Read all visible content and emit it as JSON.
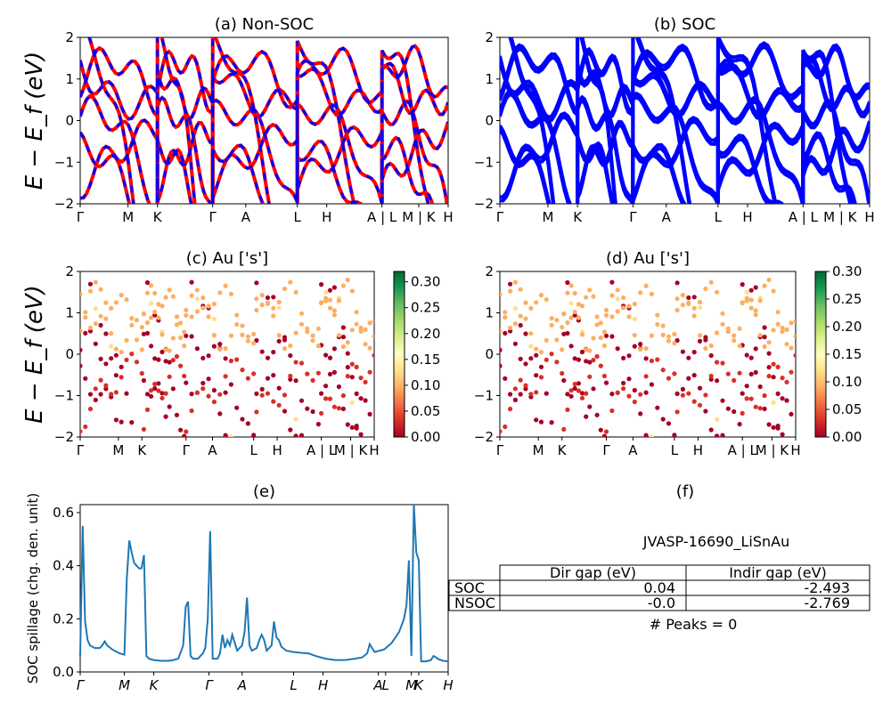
{
  "chart_data": [
    {
      "id": "a",
      "type": "line",
      "title": "(a) Non-SOC",
      "ylabel": "E − E_f (eV)",
      "ylim": [
        -2,
        2
      ],
      "yticks": [
        "−2",
        "−1",
        "0",
        "1",
        "2"
      ],
      "xticks": [
        "Γ",
        "M",
        "K",
        "Γ",
        "A",
        "L",
        "H",
        "A | L",
        "M | K",
        "H"
      ],
      "series": [
        {
          "color": "#ff0000",
          "style": "solid",
          "values": []
        },
        {
          "color": "#0000ff",
          "style": "dashed",
          "values": []
        }
      ]
    },
    {
      "id": "b",
      "type": "line",
      "title": "(b) SOC",
      "ylim": [
        -2,
        2
      ],
      "yticks": [
        "−2",
        "−1",
        "0",
        "1",
        "2"
      ],
      "xticks": [
        "Γ",
        "M",
        "K",
        "Γ",
        "A",
        "L",
        "H",
        "A | L",
        "M | K",
        "H"
      ],
      "series": [
        {
          "color": "#0000ff",
          "style": "solid",
          "values": []
        }
      ]
    },
    {
      "id": "c",
      "type": "scatter",
      "title": "(c)  Au ['s']",
      "ylabel": "E − E_f (eV)",
      "ylim": [
        -2,
        2
      ],
      "yticks": [
        "−2",
        "−1",
        "0",
        "1",
        "2"
      ],
      "xticks": [
        "Γ",
        "M",
        "K",
        "Γ",
        "A",
        "L",
        "H",
        "A | L",
        "M | K",
        "H"
      ],
      "colorbar": {
        "range": [
          0,
          0.32
        ],
        "ticks": [
          "0.00",
          "0.05",
          "0.10",
          "0.15",
          "0.20",
          "0.25",
          "0.30"
        ],
        "colormap": "RdYlGn"
      }
    },
    {
      "id": "d",
      "type": "scatter",
      "title": "(d) Au ['s']",
      "ylim": [
        -2,
        2
      ],
      "yticks": [
        "−2",
        "−1",
        "0",
        "1",
        "2"
      ],
      "xticks": [
        "Γ",
        "M",
        "K",
        "Γ",
        "A",
        "L",
        "H",
        "A | L",
        "M | K",
        "H"
      ],
      "colorbar": {
        "range": [
          0,
          0.3
        ],
        "ticks": [
          "0.00",
          "0.05",
          "0.10",
          "0.15",
          "0.20",
          "0.25",
          "0.30"
        ],
        "colormap": "RdYlGn"
      }
    },
    {
      "id": "e",
      "type": "line",
      "title": "(e)",
      "ylabel": "SOC spillage (chg. den. unit)",
      "ylim": [
        0,
        0.63
      ],
      "yticks": [
        "0.0",
        "0.2",
        "0.4",
        "0.6"
      ],
      "xticks": [
        "Γ",
        "M",
        "K",
        "Γ",
        "A",
        "L",
        "H",
        "A",
        "L",
        "M",
        "K",
        "H"
      ],
      "series": [
        {
          "color": "#1f77b4",
          "values": [
            [
              0,
              0.06
            ],
            [
              1,
              0.55
            ],
            [
              2,
              0.19
            ],
            [
              3,
              0.12
            ],
            [
              4,
              0.1
            ],
            [
              6,
              0.09
            ],
            [
              8,
              0.09
            ],
            [
              9,
              0.1
            ],
            [
              10,
              0.115
            ],
            [
              11,
              0.1
            ],
            [
              13,
              0.085
            ],
            [
              16,
              0.07
            ],
            [
              18,
              0.065
            ],
            [
              19,
              0.35
            ],
            [
              20,
              0.495
            ],
            [
              21,
              0.45
            ],
            [
              22,
              0.41
            ],
            [
              24,
              0.39
            ],
            [
              25,
              0.39
            ],
            [
              26,
              0.44
            ],
            [
              27,
              0.06
            ],
            [
              28,
              0.05
            ],
            [
              30,
              0.045
            ],
            [
              33,
              0.042
            ],
            [
              36,
              0.042
            ],
            [
              38,
              0.045
            ],
            [
              40,
              0.05
            ],
            [
              42,
              0.1
            ],
            [
              43,
              0.245
            ],
            [
              44,
              0.265
            ],
            [
              45,
              0.06
            ],
            [
              46,
              0.05
            ],
            [
              48,
              0.05
            ],
            [
              50,
              0.07
            ],
            [
              51,
              0.09
            ],
            [
              52,
              0.2
            ],
            [
              53,
              0.53
            ],
            [
              54,
              0.05
            ],
            [
              56,
              0.05
            ],
            [
              57,
              0.07
            ],
            [
              58,
              0.14
            ],
            [
              59,
              0.09
            ],
            [
              60,
              0.12
            ],
            [
              61,
              0.1
            ],
            [
              62,
              0.14
            ],
            [
              64,
              0.08
            ],
            [
              66,
              0.1
            ],
            [
              67,
              0.15
            ],
            [
              68,
              0.28
            ],
            [
              69,
              0.1
            ],
            [
              70,
              0.08
            ],
            [
              72,
              0.09
            ],
            [
              73,
              0.12
            ],
            [
              74,
              0.14
            ],
            [
              75,
              0.12
            ],
            [
              76,
              0.08
            ],
            [
              78,
              0.1
            ],
            [
              79,
              0.19
            ],
            [
              80,
              0.13
            ],
            [
              81,
              0.12
            ],
            [
              82,
              0.095
            ],
            [
              84,
              0.08
            ],
            [
              87,
              0.075
            ],
            [
              90,
              0.072
            ],
            [
              93,
              0.07
            ],
            [
              96,
              0.06
            ],
            [
              100,
              0.05
            ],
            [
              104,
              0.045
            ],
            [
              108,
              0.045
            ],
            [
              112,
              0.05
            ],
            [
              115,
              0.055
            ],
            [
              117,
              0.07
            ],
            [
              118,
              0.105
            ],
            [
              119,
              0.09
            ],
            [
              120,
              0.075
            ],
            [
              122,
              0.08
            ],
            [
              124,
              0.085
            ],
            [
              127,
              0.11
            ],
            [
              130,
              0.15
            ],
            [
              132,
              0.2
            ],
            [
              133,
              0.25
            ],
            [
              134,
              0.42
            ],
            [
              135,
              0.06
            ],
            [
              136,
              0.63
            ],
            [
              137,
              0.45
            ],
            [
              138,
              0.42
            ],
            [
              139,
              0.04
            ],
            [
              141,
              0.04
            ],
            [
              143,
              0.045
            ],
            [
              144,
              0.06
            ],
            [
              145,
              0.055
            ],
            [
              146,
              0.048
            ],
            [
              148,
              0.042
            ],
            [
              150,
              0.04
            ]
          ]
        }
      ]
    },
    {
      "id": "f",
      "type": "table",
      "title": "(f)",
      "subtitle": "JVASP-16690_LiSnAu",
      "columns": [
        "",
        "Dir gap (eV)",
        "Indir gap (eV)"
      ],
      "rows": [
        [
          "SOC",
          "0.04",
          "-2.493"
        ],
        [
          "NSOC",
          "-0.0",
          "-2.769"
        ]
      ],
      "footer": "# Peaks = 0"
    }
  ]
}
